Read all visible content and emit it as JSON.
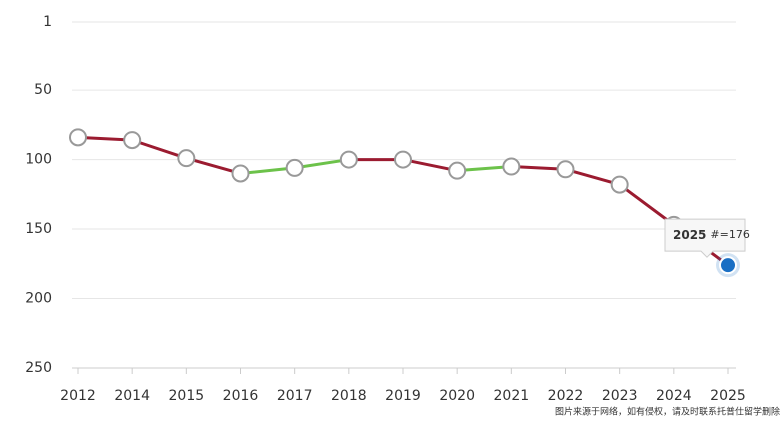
{
  "chart_data": {
    "type": "line",
    "categories": [
      "2012",
      "2014",
      "2015",
      "2016",
      "2017",
      "2018",
      "2019",
      "2020",
      "2021",
      "2022",
      "2023",
      "2024",
      "2025"
    ],
    "series": [
      {
        "values": [
          84,
          86,
          99,
          110,
          106,
          100,
          100,
          108,
          105,
          107,
          118,
          147,
          176
        ],
        "color": "#9b1b30",
        "color_improving": "#6cc24a"
      }
    ],
    "ylim": [
      1,
      250
    ],
    "y_inverted": true,
    "yticks": [
      1,
      50,
      100,
      150,
      200,
      250
    ],
    "grid": true,
    "highlight_color": "#1a6fc4",
    "tooltip_prefix": "#=",
    "watermark": "图片来源于网络，如有侵权，请及时联系托普仕留学删除"
  }
}
